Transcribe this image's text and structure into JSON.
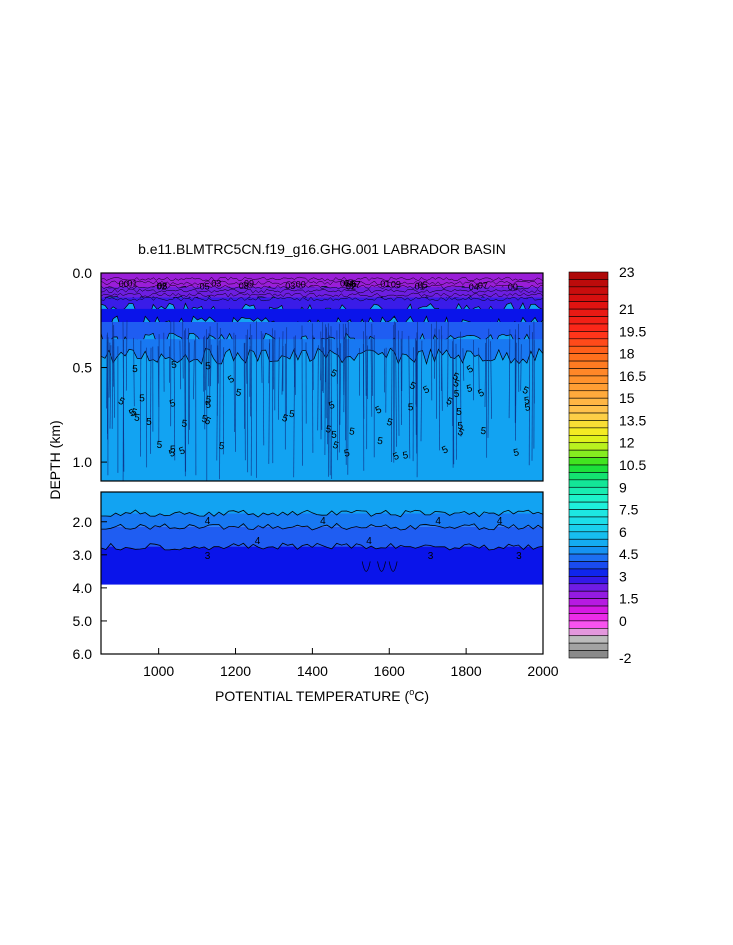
{
  "chart_data": {
    "type": "heatmap",
    "title": "b.e11.BLMTRC5CN.f19_g16.GHG.001 LABRADOR BASIN",
    "xlabel": "POTENTIAL TEMPERATURE (",
    "xlabel_unit": "o",
    "xlabel_end": "C)",
    "ylabel": "DEPTH (km)",
    "xlim": [
      850,
      2000
    ],
    "x_ticks": [
      "1000",
      "1200",
      "1400",
      "1600",
      "1800",
      "2000"
    ],
    "x_tick_values": [
      1000,
      1200,
      1400,
      1600,
      1800,
      2000
    ],
    "upper_panel": {
      "ylim": [
        0.0,
        1.1
      ],
      "y_ticks": [
        "0.0",
        "0.5",
        "1.0"
      ],
      "y_tick_values": [
        0.0,
        0.5,
        1.0
      ]
    },
    "lower_panel": {
      "ylim": [
        1.1,
        6.0
      ],
      "y_ticks": [
        "2.0",
        "3.0",
        "4.0",
        "5.0",
        "6.0"
      ],
      "y_tick_values": [
        2.0,
        3.0,
        4.0,
        5.0,
        6.0
      ],
      "data_bottom_depth": 3.9
    },
    "contour_labels": [
      "5",
      "4",
      "3"
    ],
    "colorbar": {
      "min": -2.5,
      "max": 23.5,
      "step": 0.5,
      "labels": [
        "23",
        "21",
        "19.5",
        "18",
        "16.5",
        "15",
        "13.5",
        "12",
        "10.5",
        "9",
        "7.5",
        "6",
        "4.5",
        "3",
        "1.5",
        "0",
        "-2"
      ],
      "label_values": [
        23,
        21,
        19.5,
        18,
        16.5,
        15,
        13.5,
        12,
        10.5,
        9,
        7.5,
        6,
        4.5,
        3,
        1.5,
        0,
        -2
      ]
    },
    "colors": {
      "surface_purple": "#8a1ed6",
      "mid_blue": "#1f5df2",
      "deep_blue": "#0a14ea",
      "body_cyan": "#12a3f2"
    }
  }
}
